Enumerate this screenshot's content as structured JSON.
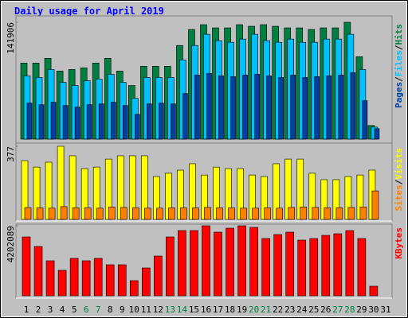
{
  "chart_data": {
    "type": "bar",
    "title": "Daily usage for April 2019",
    "categories": [
      "1",
      "2",
      "3",
      "4",
      "5",
      "6",
      "7",
      "8",
      "9",
      "10",
      "11",
      "12",
      "13",
      "14",
      "15",
      "16",
      "17",
      "18",
      "19",
      "20",
      "21",
      "22",
      "23",
      "24",
      "25",
      "26",
      "27",
      "28",
      "29",
      "30",
      "31"
    ],
    "category_colors": [
      "#000000",
      "#000000",
      "#000000",
      "#000000",
      "#000000",
      "#008040",
      "#008040",
      "#000000",
      "#000000",
      "#000000",
      "#000000",
      "#000000",
      "#008040",
      "#008040",
      "#000000",
      "#000000",
      "#000000",
      "#000000",
      "#000000",
      "#008040",
      "#008040",
      "#000000",
      "#000000",
      "#000000",
      "#000000",
      "#000000",
      "#008040",
      "#008040",
      "#000000",
      "#000000",
      "#000000"
    ],
    "legend_separator": "/",
    "panels": [
      {
        "ylim": [
          0,
          141906
        ],
        "yticks": [
          141906
        ],
        "series": [
          {
            "name": "Hits",
            "color": "#008040",
            "values": [
              92340,
              92340,
              98172,
              82620,
              84564,
              86508,
              92340,
              98172,
              82620,
              65124,
              88452,
              88452,
              88452,
              113724,
              133164,
              138996,
              135108,
              135108,
              138996,
              137052,
              138996,
              137052,
              135108,
              135108,
              133164,
              135108,
              135108,
              141906,
              100116,
              16524,
              null
            ]
          },
          {
            "name": "Files",
            "color": "#00c0ff",
            "values": [
              76788,
              74844,
              84564,
              69012,
              65124,
              70956,
              72900,
              78732,
              69012,
              49572,
              74844,
              74844,
              74844,
              96228,
              113724,
              127332,
              119556,
              117612,
              121500,
              127332,
              119556,
              117612,
              121500,
              117612,
              117612,
              121500,
              121500,
              127332,
              84564,
              14580,
              null
            ]
          },
          {
            "name": "Pages",
            "color": "#0040a0",
            "values": [
              43740,
              41796,
              44712,
              40824,
              38880,
              41796,
              42768,
              44712,
              40824,
              30132,
              42768,
              43740,
              42768,
              55404,
              77760,
              79704,
              76788,
              75816,
              77760,
              78732,
              76788,
              74844,
              77760,
              74844,
              75816,
              76788,
              77760,
              80676,
              46656,
              12636,
              null
            ]
          }
        ]
      },
      {
        "ylim": [
          0,
          377
        ],
        "yticks": [
          377
        ],
        "series": [
          {
            "name": "Visits",
            "color": "#ffff00",
            "values": [
              303,
              270,
              295,
              377,
              328,
              262,
              270,
              311,
              328,
              328,
              328,
              221,
              238,
              254,
              287,
              229,
              270,
              262,
              262,
              229,
              221,
              287,
              311,
              311,
              238,
              205,
              205,
              221,
              229,
              254,
              null
            ]
          },
          {
            "name": "Sites",
            "color": "#ff8000",
            "values": [
              61,
              60,
              58,
              66,
              60,
              60,
              58,
              64,
              62,
              60,
              58,
              58,
              60,
              60,
              60,
              62,
              60,
              60,
              58,
              58,
              60,
              58,
              62,
              64,
              62,
              60,
              60,
              62,
              64,
              147,
              null
            ]
          }
        ]
      },
      {
        "ylim": [
          0,
          4202089
        ],
        "yticks": [
          4202089
        ],
        "series": [
          {
            "name": "KBytes",
            "color": "#ff0000",
            "values": [
              3533574,
              2960562,
              2101044,
              1528032,
              2244297,
              2101044,
              2244297,
              1862289,
              1862289,
              907269,
              1671285,
              2387550,
              3533574,
              3915582,
              3915582,
              4202089,
              3820080,
              4058835,
              4202089,
              4106586,
              3438072,
              3676827,
              3820080,
              3342570,
              3438072,
              3629076,
              3724578,
              3915582,
              3438072,
              573012,
              null
            ]
          }
        ]
      }
    ]
  }
}
